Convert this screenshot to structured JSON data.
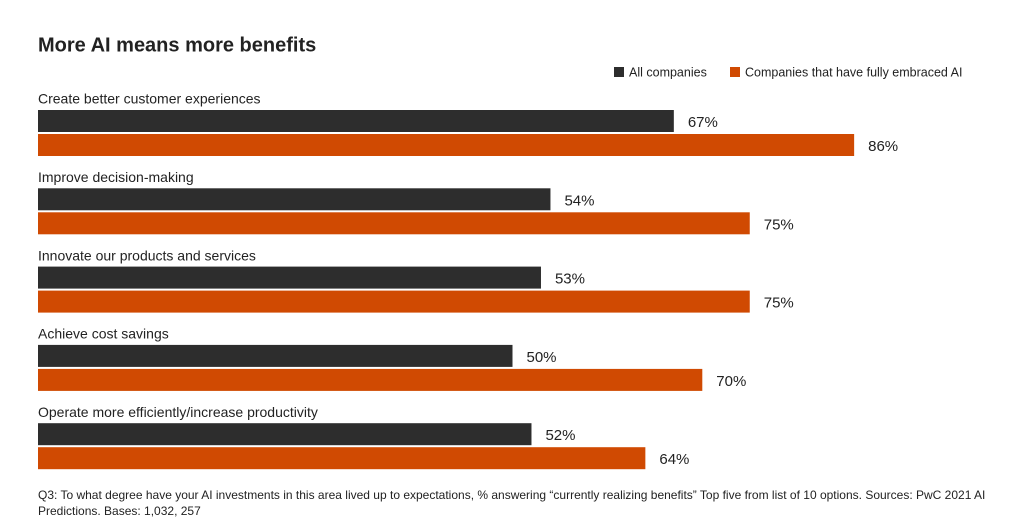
{
  "chart_data": {
    "type": "hbar",
    "title": "More AI means more benefits",
    "categories": [
      "Create better customer experiences",
      "Improve decision-making",
      "Innovate our products and services",
      "Achieve cost savings",
      "Operate more efficiently/increase productivity"
    ],
    "series": [
      {
        "name": "All companies",
        "color": "#2d2d2d",
        "values": [
          67,
          54,
          53,
          50,
          52
        ],
        "value_labels": [
          "67%",
          "54%",
          "53%",
          "50%",
          "52%"
        ]
      },
      {
        "name": "Companies that have fully embraced AI",
        "color": "#d04a02",
        "values": [
          86,
          75,
          75,
          70,
          64
        ],
        "value_labels": [
          "86%",
          "75%",
          "75%",
          "70%",
          "64%"
        ]
      }
    ],
    "footnote": "Q3: To what degree have your AI investments in this area lived up to expectations, % answering “currently realizing benefits” Top five from list of 10 options. Sources: PwC 2021 AI Predictions. Bases: 1,032, 257"
  }
}
